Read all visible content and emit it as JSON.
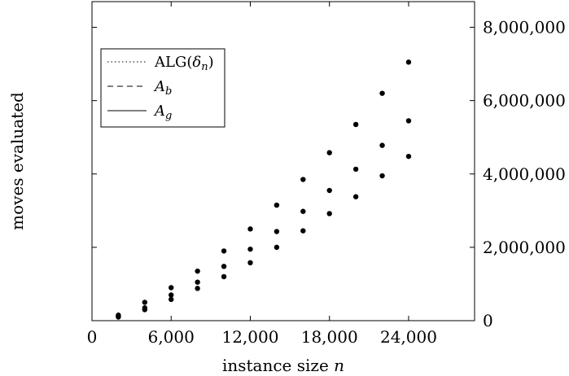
{
  "chart_data": {
    "type": "line",
    "title": "",
    "xlabel": "instance size",
    "xlabel_var": "n",
    "ylabel": "moves evaluated",
    "xlim": [
      0,
      29000
    ],
    "ylim": [
      0,
      8700000
    ],
    "xticks": [
      0,
      6000,
      12000,
      18000,
      24000
    ],
    "xtick_labels": [
      "0",
      "6,000",
      "12,000",
      "18,000",
      "24,000"
    ],
    "yticks": [
      0,
      2000000,
      4000000,
      6000000,
      8000000
    ],
    "ytick_labels": [
      "0",
      "2,000,000",
      "4,000,000",
      "6,000,000",
      "8,000,000"
    ],
    "y_axis_side": "right",
    "grid": false,
    "legend_placement": "top-left",
    "series": [
      {
        "name": "ALG(δ_n)",
        "legend_main": "ALG(",
        "legend_var": "δ",
        "legend_sub": "n",
        "legend_tail": ")",
        "line_style": "dotted",
        "x": [
          2000,
          4000,
          6000,
          8000,
          10000,
          12000,
          14000,
          16000,
          18000,
          20000,
          22000,
          24000
        ],
        "y": [
          150000,
          500000,
          900000,
          1350000,
          1900000,
          2500000,
          3150000,
          3850000,
          4580000,
          5350000,
          6200000,
          7050000
        ],
        "curve_coef": 1.17e-08,
        "curve_exp": 2
      },
      {
        "name": "A_b",
        "legend_main": "A",
        "legend_sub": "b",
        "line_style": "dashed",
        "x": [
          2000,
          4000,
          6000,
          8000,
          10000,
          12000,
          14000,
          16000,
          18000,
          20000,
          22000,
          24000
        ],
        "y": [
          120000,
          350000,
          700000,
          1050000,
          1480000,
          1950000,
          2430000,
          2980000,
          3550000,
          4130000,
          4780000,
          5450000
        ],
        "curve_coef": 9.1e-09,
        "curve_exp": 2
      },
      {
        "name": "A_g",
        "legend_main": "A",
        "legend_sub": "g",
        "line_style": "solid",
        "x": [
          2000,
          4000,
          6000,
          8000,
          10000,
          12000,
          14000,
          16000,
          18000,
          20000,
          22000,
          24000
        ],
        "y": [
          100000,
          300000,
          580000,
          880000,
          1200000,
          1580000,
          2000000,
          2450000,
          2920000,
          3380000,
          3950000,
          4480000
        ],
        "curve_coef": 7.55e-09,
        "curve_exp": 2
      }
    ],
    "curve_x_range": [
      1000,
      26000
    ]
  }
}
